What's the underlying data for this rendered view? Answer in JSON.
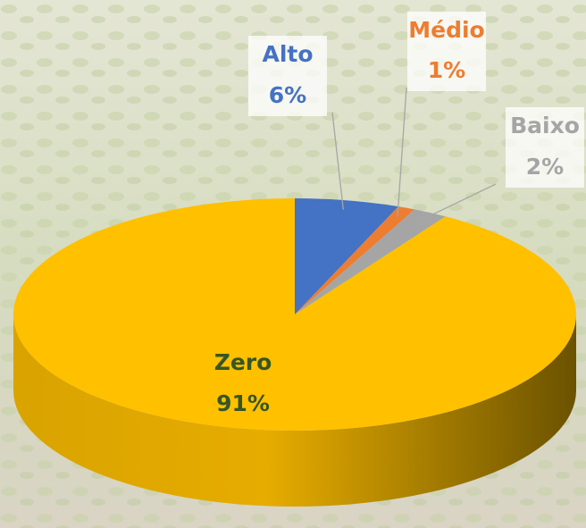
{
  "chart_data": {
    "type": "pie",
    "categories": [
      "Alto",
      "Médio",
      "Baixo",
      "Zero"
    ],
    "values": [
      6,
      1,
      2,
      91
    ],
    "value_labels": [
      "6%",
      "1%",
      "2%",
      "91%"
    ],
    "colors": [
      "#4472c4",
      "#ed7d31",
      "#a5a5a5",
      "#ffc000"
    ],
    "label_colors": [
      "#4472c4",
      "#ed7d31",
      "#a5a5a5",
      "#375623"
    ]
  }
}
